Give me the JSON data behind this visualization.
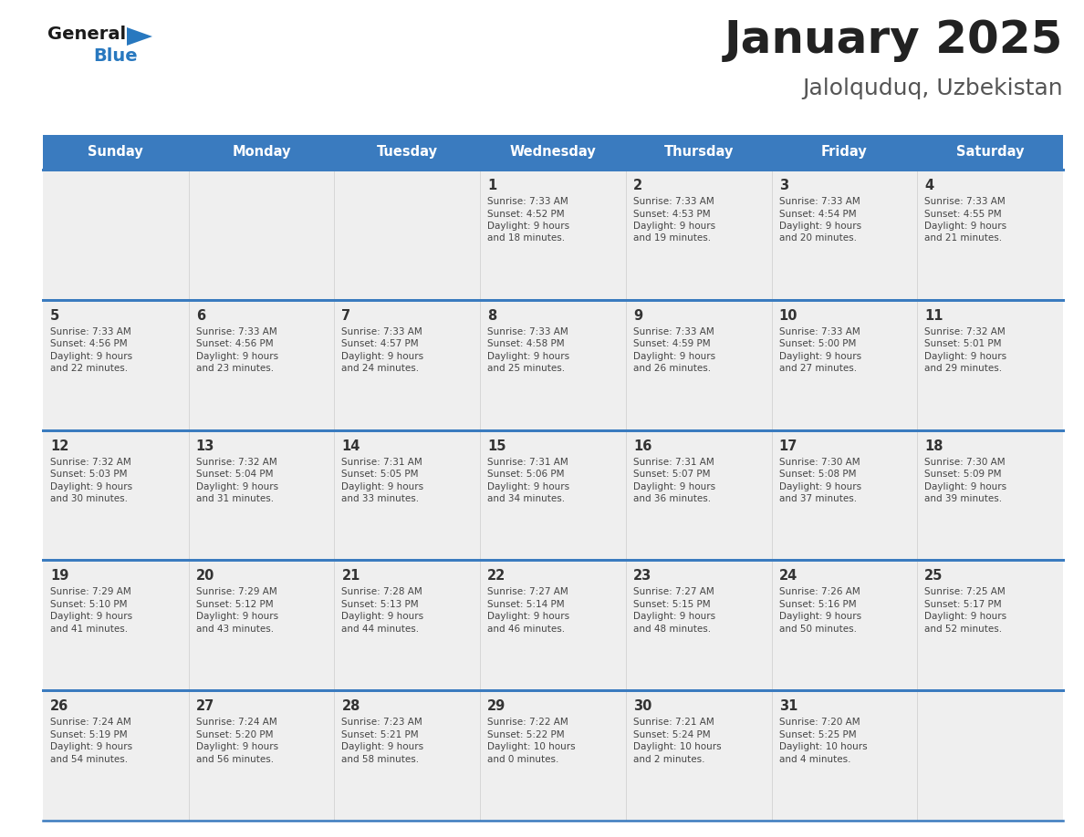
{
  "title": "January 2025",
  "subtitle": "Jalolquduq, Uzbekistan",
  "days_of_week": [
    "Sunday",
    "Monday",
    "Tuesday",
    "Wednesday",
    "Thursday",
    "Friday",
    "Saturday"
  ],
  "header_bg": "#3a7bbf",
  "header_text": "#ffffff",
  "cell_bg_light": "#efefef",
  "border_color": "#3a7bbf",
  "day_number_color": "#333333",
  "text_color": "#444444",
  "title_color": "#222222",
  "subtitle_color": "#555555",
  "logo_general_color": "#1a1a1a",
  "logo_blue_color": "#2878bf",
  "weeks": [
    [
      {
        "day": null,
        "sunrise": null,
        "sunset": null,
        "daylight_h": null,
        "daylight_m": null
      },
      {
        "day": null,
        "sunrise": null,
        "sunset": null,
        "daylight_h": null,
        "daylight_m": null
      },
      {
        "day": null,
        "sunrise": null,
        "sunset": null,
        "daylight_h": null,
        "daylight_m": null
      },
      {
        "day": 1,
        "sunrise": "7:33 AM",
        "sunset": "4:52 PM",
        "daylight_h": "9 hours",
        "daylight_m": "and 18 minutes."
      },
      {
        "day": 2,
        "sunrise": "7:33 AM",
        "sunset": "4:53 PM",
        "daylight_h": "9 hours",
        "daylight_m": "and 19 minutes."
      },
      {
        "day": 3,
        "sunrise": "7:33 AM",
        "sunset": "4:54 PM",
        "daylight_h": "9 hours",
        "daylight_m": "and 20 minutes."
      },
      {
        "day": 4,
        "sunrise": "7:33 AM",
        "sunset": "4:55 PM",
        "daylight_h": "9 hours",
        "daylight_m": "and 21 minutes."
      }
    ],
    [
      {
        "day": 5,
        "sunrise": "7:33 AM",
        "sunset": "4:56 PM",
        "daylight_h": "9 hours",
        "daylight_m": "and 22 minutes."
      },
      {
        "day": 6,
        "sunrise": "7:33 AM",
        "sunset": "4:56 PM",
        "daylight_h": "9 hours",
        "daylight_m": "and 23 minutes."
      },
      {
        "day": 7,
        "sunrise": "7:33 AM",
        "sunset": "4:57 PM",
        "daylight_h": "9 hours",
        "daylight_m": "and 24 minutes."
      },
      {
        "day": 8,
        "sunrise": "7:33 AM",
        "sunset": "4:58 PM",
        "daylight_h": "9 hours",
        "daylight_m": "and 25 minutes."
      },
      {
        "day": 9,
        "sunrise": "7:33 AM",
        "sunset": "4:59 PM",
        "daylight_h": "9 hours",
        "daylight_m": "and 26 minutes."
      },
      {
        "day": 10,
        "sunrise": "7:33 AM",
        "sunset": "5:00 PM",
        "daylight_h": "9 hours",
        "daylight_m": "and 27 minutes."
      },
      {
        "day": 11,
        "sunrise": "7:32 AM",
        "sunset": "5:01 PM",
        "daylight_h": "9 hours",
        "daylight_m": "and 29 minutes."
      }
    ],
    [
      {
        "day": 12,
        "sunrise": "7:32 AM",
        "sunset": "5:03 PM",
        "daylight_h": "9 hours",
        "daylight_m": "and 30 minutes."
      },
      {
        "day": 13,
        "sunrise": "7:32 AM",
        "sunset": "5:04 PM",
        "daylight_h": "9 hours",
        "daylight_m": "and 31 minutes."
      },
      {
        "day": 14,
        "sunrise": "7:31 AM",
        "sunset": "5:05 PM",
        "daylight_h": "9 hours",
        "daylight_m": "and 33 minutes."
      },
      {
        "day": 15,
        "sunrise": "7:31 AM",
        "sunset": "5:06 PM",
        "daylight_h": "9 hours",
        "daylight_m": "and 34 minutes."
      },
      {
        "day": 16,
        "sunrise": "7:31 AM",
        "sunset": "5:07 PM",
        "daylight_h": "9 hours",
        "daylight_m": "and 36 minutes."
      },
      {
        "day": 17,
        "sunrise": "7:30 AM",
        "sunset": "5:08 PM",
        "daylight_h": "9 hours",
        "daylight_m": "and 37 minutes."
      },
      {
        "day": 18,
        "sunrise": "7:30 AM",
        "sunset": "5:09 PM",
        "daylight_h": "9 hours",
        "daylight_m": "and 39 minutes."
      }
    ],
    [
      {
        "day": 19,
        "sunrise": "7:29 AM",
        "sunset": "5:10 PM",
        "daylight_h": "9 hours",
        "daylight_m": "and 41 minutes."
      },
      {
        "day": 20,
        "sunrise": "7:29 AM",
        "sunset": "5:12 PM",
        "daylight_h": "9 hours",
        "daylight_m": "and 43 minutes."
      },
      {
        "day": 21,
        "sunrise": "7:28 AM",
        "sunset": "5:13 PM",
        "daylight_h": "9 hours",
        "daylight_m": "and 44 minutes."
      },
      {
        "day": 22,
        "sunrise": "7:27 AM",
        "sunset": "5:14 PM",
        "daylight_h": "9 hours",
        "daylight_m": "and 46 minutes."
      },
      {
        "day": 23,
        "sunrise": "7:27 AM",
        "sunset": "5:15 PM",
        "daylight_h": "9 hours",
        "daylight_m": "and 48 minutes."
      },
      {
        "day": 24,
        "sunrise": "7:26 AM",
        "sunset": "5:16 PM",
        "daylight_h": "9 hours",
        "daylight_m": "and 50 minutes."
      },
      {
        "day": 25,
        "sunrise": "7:25 AM",
        "sunset": "5:17 PM",
        "daylight_h": "9 hours",
        "daylight_m": "and 52 minutes."
      }
    ],
    [
      {
        "day": 26,
        "sunrise": "7:24 AM",
        "sunset": "5:19 PM",
        "daylight_h": "9 hours",
        "daylight_m": "and 54 minutes."
      },
      {
        "day": 27,
        "sunrise": "7:24 AM",
        "sunset": "5:20 PM",
        "daylight_h": "9 hours",
        "daylight_m": "and 56 minutes."
      },
      {
        "day": 28,
        "sunrise": "7:23 AM",
        "sunset": "5:21 PM",
        "daylight_h": "9 hours",
        "daylight_m": "and 58 minutes."
      },
      {
        "day": 29,
        "sunrise": "7:22 AM",
        "sunset": "5:22 PM",
        "daylight_h": "10 hours",
        "daylight_m": "and 0 minutes."
      },
      {
        "day": 30,
        "sunrise": "7:21 AM",
        "sunset": "5:24 PM",
        "daylight_h": "10 hours",
        "daylight_m": "and 2 minutes."
      },
      {
        "day": 31,
        "sunrise": "7:20 AM",
        "sunset": "5:25 PM",
        "daylight_h": "10 hours",
        "daylight_m": "and 4 minutes."
      },
      {
        "day": null,
        "sunrise": null,
        "sunset": null,
        "daylight_h": null,
        "daylight_m": null
      }
    ]
  ]
}
